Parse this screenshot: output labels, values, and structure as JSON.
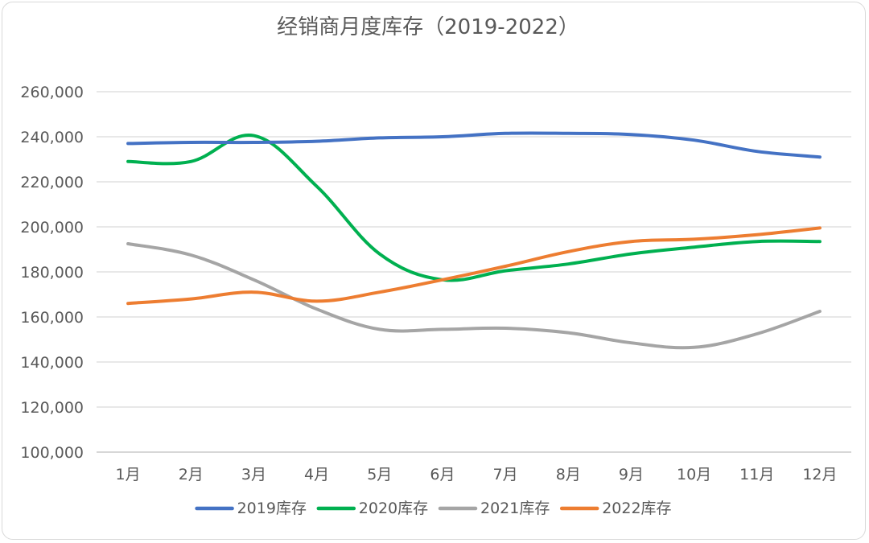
{
  "chart_data": {
    "type": "line",
    "title": "经销商月度库存（2019-2022）",
    "categories": [
      "1月",
      "2月",
      "3月",
      "4月",
      "5月",
      "6月",
      "7月",
      "8月",
      "9月",
      "10月",
      "11月",
      "12月"
    ],
    "ylim": [
      100000,
      260000
    ],
    "yticks": [
      "100,000",
      "120,000",
      "140,000",
      "160,000",
      "180,000",
      "200,000",
      "220,000",
      "240,000",
      "260,000"
    ],
    "ytick_values": [
      100000,
      120000,
      140000,
      160000,
      180000,
      200000,
      220000,
      240000,
      260000
    ],
    "grid": true,
    "smooth": true,
    "legend_position": "bottom",
    "series": [
      {
        "name": "2019库存",
        "color": "#4472c4",
        "values": [
          237000,
          237500,
          237500,
          238000,
          239500,
          240000,
          241500,
          241500,
          241000,
          238500,
          233500,
          231000
        ]
      },
      {
        "name": "2020库存",
        "color": "#00b050",
        "values": [
          229000,
          229000,
          240500,
          218000,
          188000,
          176500,
          180500,
          183500,
          188000,
          191000,
          193500,
          193500
        ]
      },
      {
        "name": "2021库存",
        "color": "#a5a5a5",
        "values": [
          192500,
          187500,
          176500,
          163500,
          154500,
          154500,
          155000,
          153000,
          148500,
          146500,
          152500,
          162500
        ]
      },
      {
        "name": "2022库存",
        "color": "#ed7d31",
        "values": [
          166000,
          168000,
          171000,
          167000,
          171000,
          176500,
          182500,
          189000,
          193500,
          194500,
          196500,
          199500
        ]
      }
    ]
  }
}
